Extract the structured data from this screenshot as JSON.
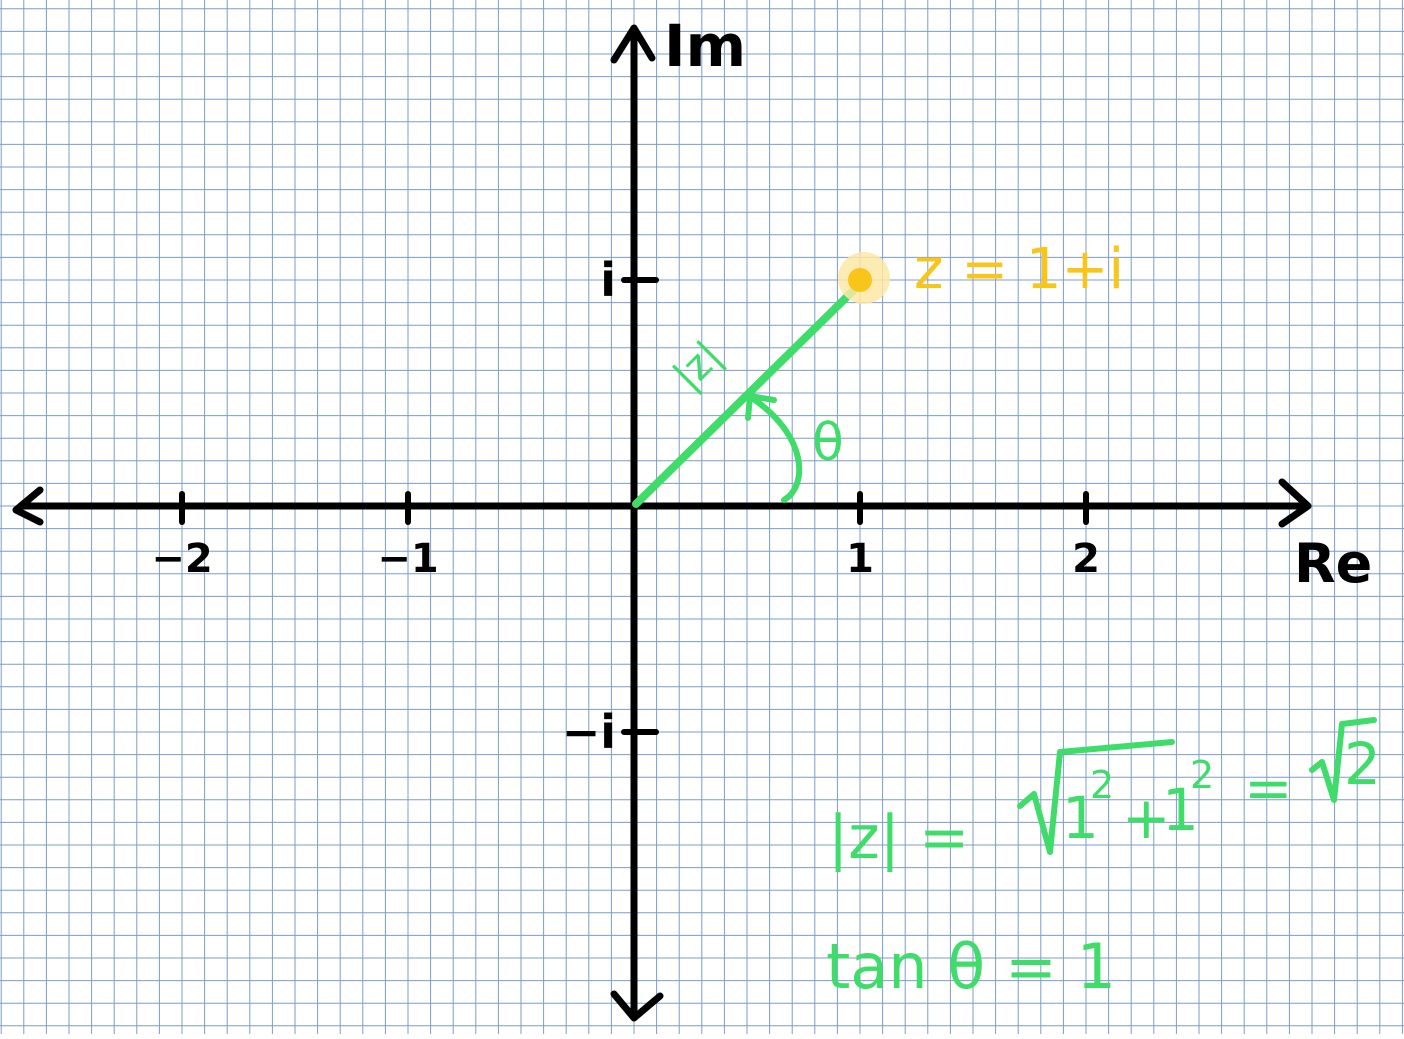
{
  "axes": {
    "real_label": "Re",
    "imag_label": "Im"
  },
  "real_ticks": [
    {
      "value": -2,
      "label": "−2"
    },
    {
      "value": -1,
      "label": "−1"
    },
    {
      "value": 1,
      "label": "1"
    },
    {
      "value": 2,
      "label": "2"
    }
  ],
  "imag_ticks": [
    {
      "value": 1,
      "label": "i"
    },
    {
      "value": -1,
      "label": "−i"
    }
  ],
  "point": {
    "re": 1,
    "im": 1,
    "label": "z = 1+i",
    "color": "#f8c51a",
    "glow_color": "#fbe7a6"
  },
  "vector": {
    "label": "|z|",
    "color": "#3fdc6a"
  },
  "angle": {
    "label": "θ"
  },
  "equations": {
    "modulus": {
      "lhs": "|z| =",
      "radicand_a": "1",
      "sup_a": "2",
      "plus": "+",
      "radicand_b": "1",
      "sup_b": "2",
      "equals": "=",
      "result": "2"
    },
    "tangent": "tan θ = 1"
  },
  "colors": {
    "grid": "#7b9ccb",
    "axis": "#000000",
    "background": "#ffffff"
  }
}
